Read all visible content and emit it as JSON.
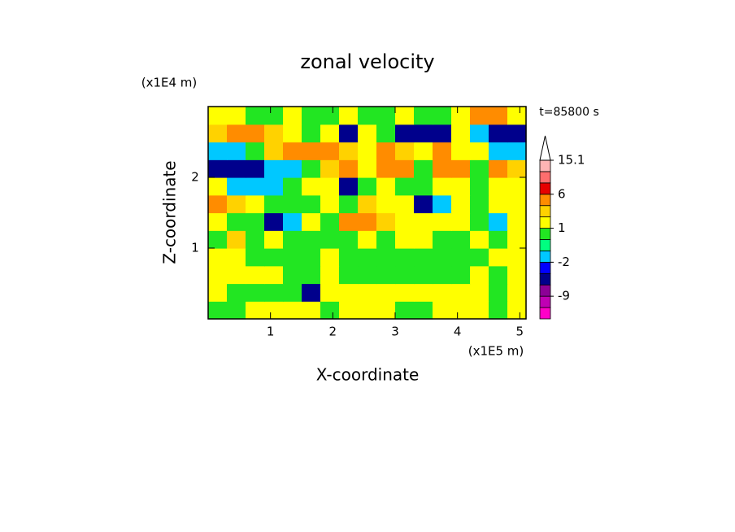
{
  "chart_data": {
    "type": "contour",
    "title": "zonal velocity",
    "x_label": "X-coordinate",
    "y_label": "Z-coordinate",
    "x_unit": "(x1E5 m)",
    "y_unit": "(x1E4 m)",
    "time_label": "t=85800 s",
    "xlim": [
      0,
      5.1
    ],
    "ylim": [
      0,
      3
    ],
    "xticks": [
      1,
      2,
      3,
      4,
      5
    ],
    "yticks": [
      1,
      2
    ],
    "x": [
      0.15,
      0.45,
      0.75,
      1.05,
      1.35,
      1.65,
      1.95,
      2.25,
      2.55,
      2.85,
      3.15,
      3.45,
      3.75,
      4.05,
      4.35,
      4.65,
      4.95
    ],
    "y": [
      0.125,
      0.375,
      0.625,
      0.875,
      1.125,
      1.375,
      1.625,
      1.875,
      2.125,
      2.375,
      2.625,
      2.875
    ],
    "values": [
      [
        0.5,
        0.5,
        1.5,
        1.5,
        1.5,
        1.5,
        0.5,
        1.5,
        1.5,
        1.5,
        0.5,
        0.5,
        1.5,
        1.5,
        1.5,
        0.5,
        1.5
      ],
      [
        1.5,
        0.5,
        0.5,
        0.5,
        0.5,
        -4,
        1.5,
        1.5,
        1.5,
        1.5,
        1.5,
        1.5,
        1.5,
        1.5,
        1.5,
        0.5,
        1.5
      ],
      [
        1.5,
        1.5,
        1.5,
        1.5,
        0.5,
        0.5,
        1.5,
        0.5,
        0.5,
        0.5,
        0.5,
        0.5,
        0.5,
        0.5,
        1.5,
        0.5,
        1.5
      ],
      [
        1.5,
        1.5,
        0.5,
        0.5,
        0.5,
        0.5,
        1.5,
        0.5,
        0.5,
        0.5,
        0.5,
        0.5,
        0.5,
        0.5,
        0.5,
        1.5,
        1.5
      ],
      [
        0.5,
        2.5,
        0.5,
        1.5,
        0.5,
        0.5,
        0.5,
        0.5,
        1.5,
        0.5,
        1.5,
        1.5,
        0.5,
        0.5,
        1.5,
        0.5,
        1.5
      ],
      [
        1.5,
        0.5,
        0.5,
        -4,
        -1.5,
        1.5,
        0.5,
        4,
        4,
        2.5,
        1.5,
        1.5,
        1.5,
        1.5,
        0.5,
        -1.5,
        1.5
      ],
      [
        4,
        2.5,
        1.5,
        0.5,
        0.5,
        0.5,
        1.5,
        0.5,
        2.5,
        1.5,
        1.5,
        -4,
        -1.5,
        1.5,
        0.5,
        1.5,
        1.5
      ],
      [
        1.5,
        -1.5,
        -1.5,
        -1.5,
        0.5,
        1.5,
        1.5,
        -4,
        0.5,
        1.5,
        0.5,
        0.5,
        1.5,
        1.5,
        0.5,
        1.5,
        1.5
      ],
      [
        -4,
        -4,
        -4,
        -1.5,
        -1.5,
        0.5,
        2.5,
        4,
        1.5,
        4,
        4,
        0.5,
        4,
        4,
        0.5,
        4,
        2.5
      ],
      [
        -1.5,
        -1.5,
        0.5,
        2.5,
        4,
        4,
        4,
        2.5,
        1.5,
        4,
        2.5,
        1.5,
        4,
        1.5,
        1.5,
        -1.5,
        -1.5
      ],
      [
        2.5,
        4,
        4,
        2.5,
        1.5,
        0.5,
        1.5,
        -4,
        1.5,
        0.5,
        -4,
        -4,
        -4,
        1.5,
        -1.5,
        -4,
        -4
      ],
      [
        1.5,
        1.5,
        0.5,
        0.5,
        1.5,
        0.5,
        0.5,
        1.5,
        0.5,
        0.5,
        1.5,
        0.5,
        0.5,
        1.5,
        4,
        4,
        1.5
      ]
    ],
    "levels": [
      -15,
      -12,
      -9,
      -6,
      -3,
      -2,
      -1,
      0,
      1,
      2,
      3,
      6,
      9,
      12,
      15.1
    ],
    "colors": [
      "#ff00c8",
      "#c000b4",
      "#8c0096",
      "#00008c",
      "#0000ff",
      "#00c8ff",
      "#00ff80",
      "#22e622",
      "#ffff00",
      "#ffd200",
      "#ff8c00",
      "#e60000",
      "#ff6e6e",
      "#ffb4b4"
    ],
    "extend_color": "#ffffff",
    "colorbar_ticks": [
      15.1,
      6,
      1,
      -2,
      -9
    ]
  }
}
